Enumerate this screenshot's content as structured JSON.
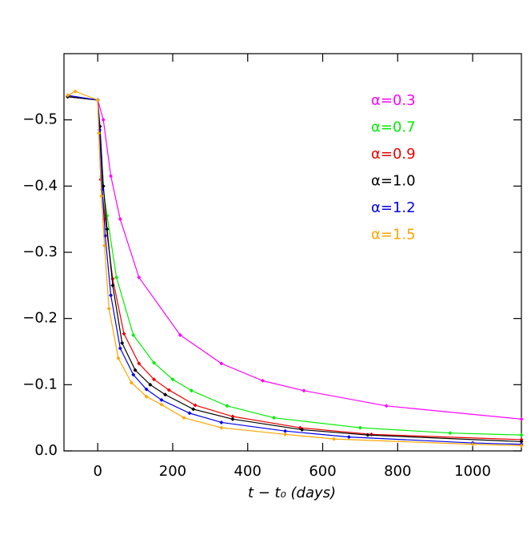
{
  "chart_data": {
    "type": "line",
    "xlabel": "t − t₀ (days)",
    "xlim": [
      -90,
      1130
    ],
    "xticks": [
      0,
      200,
      400,
      600,
      800,
      1000
    ],
    "ylim": [
      0.0,
      -0.6
    ],
    "yticks": [
      {
        "value": 0.0,
        "label": "0.0"
      },
      {
        "value": -0.1,
        "label": "−0.1"
      },
      {
        "value": -0.2,
        "label": "−0.2"
      },
      {
        "value": -0.3,
        "label": "−0.3"
      },
      {
        "value": -0.4,
        "label": "−0.4"
      },
      {
        "value": -0.5,
        "label": "−0.5"
      }
    ],
    "series": [
      {
        "name": "α=0.3",
        "color": "#ff00ff",
        "x": [
          -80,
          0,
          15,
          35,
          60,
          110,
          220,
          330,
          440,
          550,
          770,
          1130
        ],
        "values": [
          -0.535,
          -0.53,
          -0.5,
          -0.415,
          -0.35,
          -0.262,
          -0.175,
          -0.132,
          -0.106,
          -0.091,
          -0.068,
          -0.048
        ]
      },
      {
        "name": "α=0.7",
        "color": "#00ee00",
        "x": [
          -80,
          0,
          10,
          25,
          50,
          95,
          150,
          200,
          250,
          345,
          470,
          700,
          940,
          1130
        ],
        "values": [
          -0.535,
          -0.53,
          -0.415,
          -0.355,
          -0.262,
          -0.175,
          -0.133,
          -0.108,
          -0.091,
          -0.068,
          -0.05,
          -0.035,
          -0.027,
          -0.024
        ]
      },
      {
        "name": "α=0.9",
        "color": "#ee0000",
        "x": [
          -80,
          0,
          8,
          20,
          40,
          70,
          110,
          150,
          190,
          260,
          360,
          540,
          730,
          1130
        ],
        "values": [
          -0.535,
          -0.53,
          -0.41,
          -0.35,
          -0.26,
          -0.177,
          -0.132,
          -0.108,
          -0.092,
          -0.069,
          -0.052,
          -0.035,
          -0.025,
          -0.017
        ]
      },
      {
        "name": "α=1.0",
        "color": "#000000",
        "x": [
          -80,
          0,
          6,
          15,
          25,
          40,
          65,
          100,
          140,
          180,
          255,
          360,
          545,
          720,
          1130
        ],
        "values": [
          -0.535,
          -0.53,
          -0.49,
          -0.4,
          -0.335,
          -0.25,
          -0.163,
          -0.122,
          -0.1,
          -0.085,
          -0.063,
          -0.048,
          -0.032,
          -0.024,
          -0.014
        ]
      },
      {
        "name": "α=1.2",
        "color": "#0000ee",
        "x": [
          -80,
          0,
          5,
          12,
          20,
          35,
          60,
          95,
          130,
          170,
          245,
          330,
          500,
          670,
          1000,
          1130
        ],
        "values": [
          -0.537,
          -0.53,
          -0.485,
          -0.395,
          -0.325,
          -0.235,
          -0.155,
          -0.115,
          -0.093,
          -0.077,
          -0.057,
          -0.043,
          -0.03,
          -0.021,
          -0.012,
          -0.01
        ]
      },
      {
        "name": "α=1.5",
        "color": "#ffa500",
        "x": [
          -80,
          -60,
          0,
          3,
          10,
          18,
          30,
          55,
          90,
          130,
          170,
          230,
          330,
          500,
          630,
          1000,
          1130
        ],
        "values": [
          -0.537,
          -0.543,
          -0.53,
          -0.48,
          -0.385,
          -0.31,
          -0.215,
          -0.14,
          -0.103,
          -0.082,
          -0.07,
          -0.05,
          -0.035,
          -0.025,
          -0.018,
          -0.01,
          -0.008
        ]
      }
    ]
  }
}
